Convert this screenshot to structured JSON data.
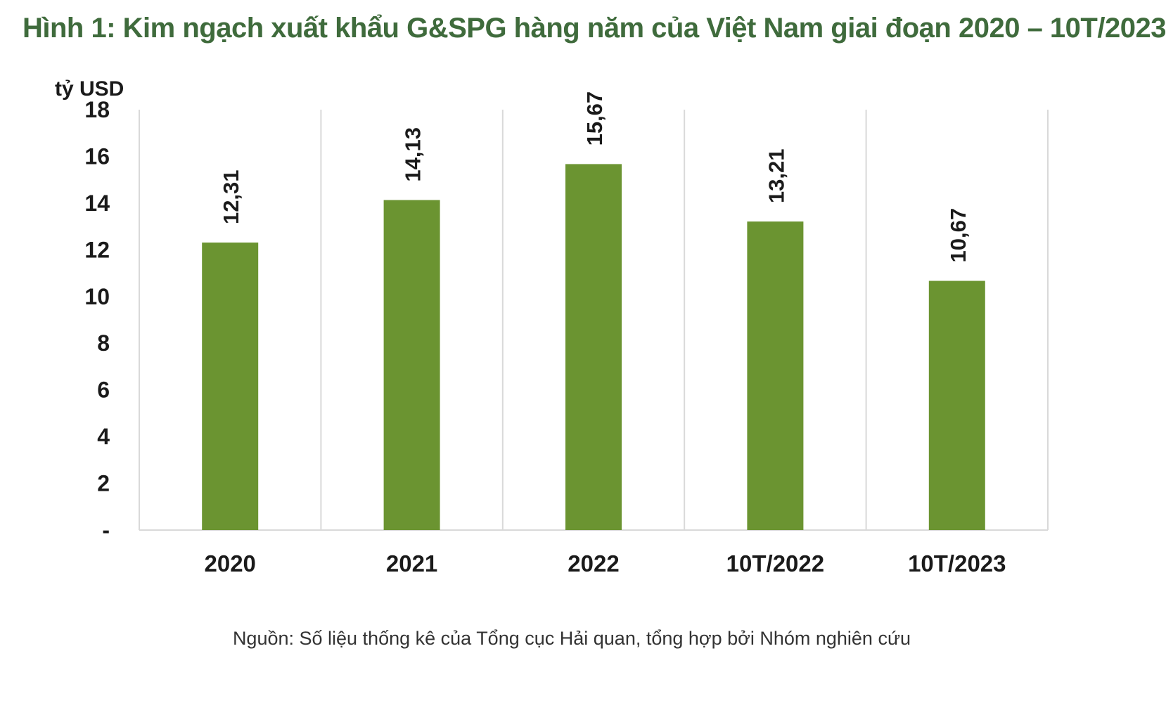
{
  "title": "Hình 1: Kim ngạch xuất khẩu G&SPG hàng năm của Việt Nam giai đoạn 2020 – 10T/2023",
  "source": "Nguồn: Số liệu thống kê của Tổng cục Hải quan, tổng hợp bởi Nhóm nghiên cứu",
  "colors": {
    "title": "#3f6b3c",
    "bar": "#6b9431",
    "grid": "#d9d9d9",
    "text": "#1a1a1a"
  },
  "chart_data": {
    "type": "bar",
    "title": "Hình 1: Kim ngạch xuất khẩu G&SPG hàng năm của Việt Nam giai đoạn 2020 – 10T/2023",
    "unit_label": "tỷ USD",
    "categories": [
      "2020",
      "2021",
      "2022",
      "10T/2022",
      "10T/2023"
    ],
    "values": [
      12.31,
      14.13,
      15.67,
      13.21,
      10.67
    ],
    "value_labels": [
      "12,31",
      "14,13",
      "15,67",
      "13,21",
      "10,67"
    ],
    "ylim": [
      0,
      18
    ],
    "y_ticks": [
      0,
      2,
      4,
      6,
      8,
      10,
      12,
      14,
      16,
      18
    ],
    "y_tick_labels": [
      "-",
      "2",
      "4",
      "6",
      "8",
      "10",
      "12",
      "14",
      "16",
      "18"
    ],
    "xlabel": "",
    "ylabel": "tỷ USD",
    "grid": "vertical-separators",
    "legend": "none"
  }
}
